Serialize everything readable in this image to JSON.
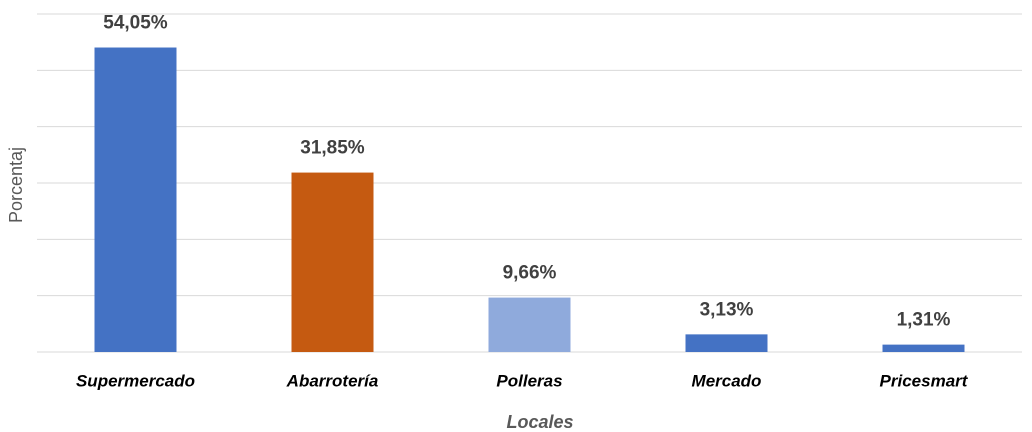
{
  "chart_data": {
    "type": "bar",
    "x_label": "Locales",
    "y_label": "Porcentaj",
    "categories": [
      "Supermercado",
      "Abarrotería",
      "Polleras",
      "Mercado",
      "Pricesmart"
    ],
    "values": [
      54.05,
      31.85,
      9.66,
      3.13,
      1.31
    ],
    "value_labels": [
      "54,05%",
      "31,85%",
      "9,66%",
      "3,13%",
      "1,31%"
    ],
    "colors": [
      "#4472c4",
      "#c55a11",
      "#8faadc",
      "#4472c4",
      "#4472c4"
    ],
    "ylim": [
      0,
      60
    ],
    "yticks": [
      0,
      10,
      20,
      30,
      40,
      50,
      60
    ],
    "grid": true
  }
}
